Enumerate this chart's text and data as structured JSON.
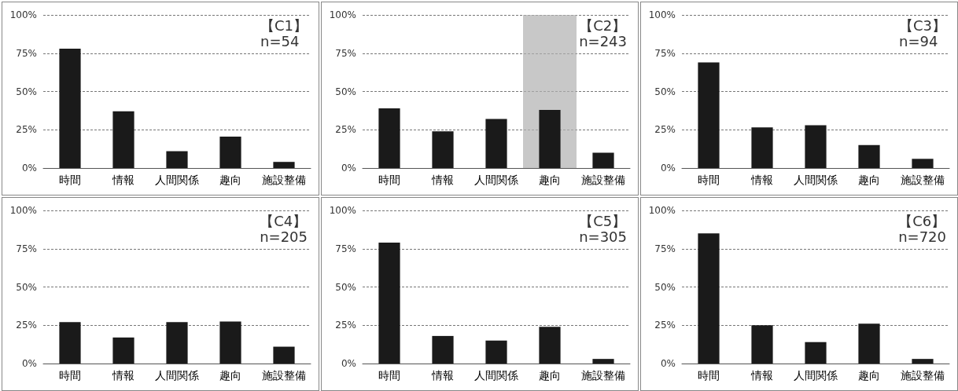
{
  "chart_data": [
    {
      "type": "bar",
      "title": "【C1】",
      "subtitle": "n=54",
      "categories": [
        "時間",
        "情報",
        "人間関係",
        "趣向",
        "施設整備"
      ],
      "values": [
        78,
        37,
        11,
        20.5,
        4
      ],
      "color": "#1a1a1a",
      "ylim": [
        0,
        100
      ],
      "yticks": [
        {
          "value": 0,
          "label": "0%"
        },
        {
          "value": 25,
          "label": "25%"
        },
        {
          "value": 50,
          "label": "50%"
        },
        {
          "value": 75,
          "label": "75%"
        },
        {
          "value": 100,
          "label": "100%"
        }
      ],
      "grid": "y"
    },
    {
      "type": "bar",
      "title": "【C2】",
      "subtitle": "n=243",
      "categories": [
        "時間",
        "情報",
        "人間関係",
        "趣向",
        "施設整備"
      ],
      "values": [
        39,
        24,
        32,
        38,
        10
      ],
      "color": "#1a1a1a",
      "ylim": [
        0,
        100
      ],
      "yticks": [
        {
          "value": 0,
          "label": "0%"
        },
        {
          "value": 25,
          "label": "25%"
        },
        {
          "value": 50,
          "label": "50%"
        },
        {
          "value": 75,
          "label": "75%"
        },
        {
          "value": 100,
          "label": "100%"
        }
      ],
      "grid": "y",
      "bands": [
        {
          "axis": "x",
          "from": "趣向",
          "to": "趣向",
          "color": "#b0b0b0"
        }
      ]
    },
    {
      "type": "bar",
      "title": "【C3】",
      "subtitle": "n=94",
      "categories": [
        "時間",
        "情報",
        "人間関係",
        "趣向",
        "施設整備"
      ],
      "values": [
        69,
        26.5,
        28,
        15,
        6
      ],
      "color": "#1a1a1a",
      "ylim": [
        0,
        100
      ],
      "yticks": [
        {
          "value": 0,
          "label": "0%"
        },
        {
          "value": 25,
          "label": "25%"
        },
        {
          "value": 50,
          "label": "50%"
        },
        {
          "value": 75,
          "label": "75%"
        },
        {
          "value": 100,
          "label": "100%"
        }
      ],
      "grid": "y"
    },
    {
      "type": "bar",
      "title": "【C4】",
      "subtitle": "n=205",
      "categories": [
        "時間",
        "情報",
        "人間関係",
        "趣向",
        "施設整備"
      ],
      "values": [
        27,
        17,
        27,
        27.5,
        11
      ],
      "color": "#1a1a1a",
      "ylim": [
        0,
        100
      ],
      "yticks": [
        {
          "value": 0,
          "label": "0%"
        },
        {
          "value": 25,
          "label": "25%"
        },
        {
          "value": 50,
          "label": "50%"
        },
        {
          "value": 75,
          "label": "75%"
        },
        {
          "value": 100,
          "label": "100%"
        }
      ],
      "grid": "y"
    },
    {
      "type": "bar",
      "title": "【C5】",
      "subtitle": "n=305",
      "categories": [
        "時間",
        "情報",
        "人間関係",
        "趣向",
        "施設整備"
      ],
      "values": [
        79,
        18,
        15,
        24,
        3
      ],
      "color": "#1a1a1a",
      "ylim": [
        0,
        100
      ],
      "yticks": [
        {
          "value": 0,
          "label": "0%"
        },
        {
          "value": 25,
          "label": "25%"
        },
        {
          "value": 50,
          "label": "50%"
        },
        {
          "value": 75,
          "label": "75%"
        },
        {
          "value": 100,
          "label": "100%"
        }
      ],
      "grid": "y"
    },
    {
      "type": "bar",
      "title": "【C6】",
      "subtitle": "n=720",
      "categories": [
        "時間",
        "情報",
        "人間関係",
        "趣向",
        "施設整備"
      ],
      "values": [
        85,
        25,
        14,
        26,
        3
      ],
      "color": "#1a1a1a",
      "ylim": [
        0,
        100
      ],
      "yticks": [
        {
          "value": 0,
          "label": "0%"
        },
        {
          "value": 25,
          "label": "25%"
        },
        {
          "value": 50,
          "label": "50%"
        },
        {
          "value": 75,
          "label": "75%"
        },
        {
          "value": 100,
          "label": "100%"
        }
      ],
      "grid": "y"
    }
  ]
}
